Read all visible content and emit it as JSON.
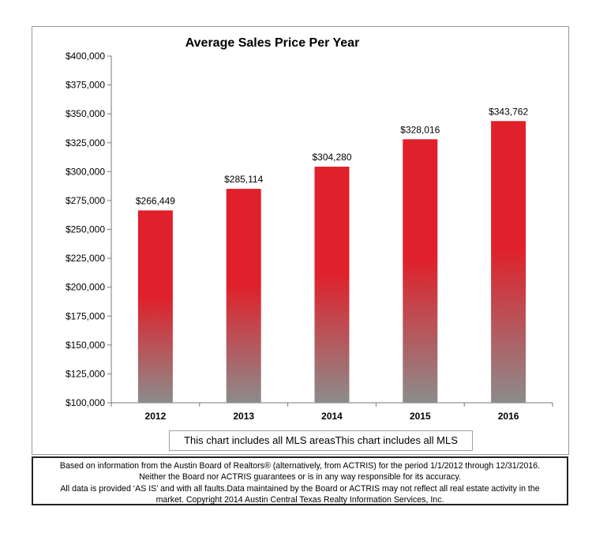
{
  "chart_data": {
    "type": "bar",
    "title": "Average Sales Price Per Year",
    "categories": [
      "2012",
      "2013",
      "2014",
      "2015",
      "2016"
    ],
    "values": [
      266449,
      285114,
      304280,
      328016,
      343762
    ],
    "data_labels": [
      "$266,449",
      "$285,114",
      "$304,280",
      "$328,016",
      "$343,762"
    ],
    "ylim": [
      100000,
      400000
    ],
    "yticks": [
      100000,
      125000,
      150000,
      175000,
      200000,
      225000,
      250000,
      275000,
      300000,
      325000,
      350000,
      375000,
      400000
    ],
    "ytick_labels": [
      "$100,000",
      "$125,000",
      "$150,000",
      "$175,000",
      "$200,000",
      "$225,000",
      "$250,000",
      "$275,000",
      "$300,000",
      "$325,000",
      "$350,000",
      "$375,000",
      "$400,000"
    ],
    "bar_color": "#e0202a",
    "bar_fade_color": "#8c8c8c",
    "grid": false,
    "legend": "none"
  },
  "note": "This chart includes all MLS areasThis chart includes all MLS",
  "disclaimer": {
    "line1": "Based on information from the Austin Board of Realtors® (alternatively, from ACTRIS) for the period 1/1/2012 through 12/31/2016.",
    "line2": "Neither the Board nor ACTRIS guarantees or is in any way responsible for its accuracy.",
    "line3": "All data is provided ‘AS IS’ and with all faults.Data maintained by the Board or ACTRIS may not reflect all real estate activity in the",
    "line4": "market.  Copyright 2014 Austin Central Texas Realty Information Services, Inc."
  }
}
